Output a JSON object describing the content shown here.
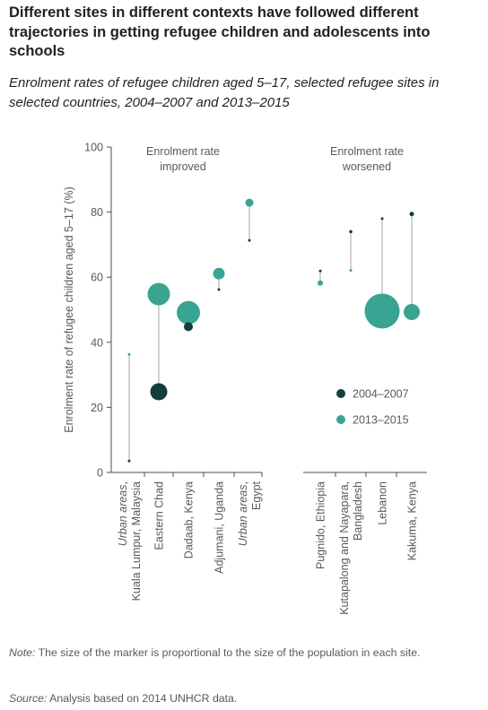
{
  "title": "Different sites in different contexts have followed different trajectories in getting refugee children and adolescents into schools",
  "subtitle": "Enrolment rates of refugee children aged 5–17, selected refugee sites in selected countries, 2004–2007 and 2013–2015",
  "note": {
    "label": "Note:",
    "text": " The size of the marker is proportional to the size of the population in each site."
  },
  "source": {
    "label": "Source:",
    "text": " Analysis based on 2014 UNHCR data."
  },
  "colors": {
    "period1": "#123e3b",
    "period2": "#3aa493",
    "connector": "#b3b3b3",
    "axis": "#4d4d4d",
    "text": "#58595b"
  },
  "chart_data": {
    "type": "scatter",
    "title": "",
    "xlabel": "",
    "ylabel": "Enrolment rate of refugee children aged 5–17 (%)",
    "ylim": [
      0,
      100
    ],
    "yticks": [
      0,
      20,
      40,
      60,
      80,
      100
    ],
    "grid": false,
    "legend_position": "bottom-right",
    "series": [
      {
        "name": "2004–2007",
        "color": "#123e3b"
      },
      {
        "name": "2013–2015",
        "color": "#3aa493"
      }
    ],
    "groups": [
      {
        "label": "Enrolment rate improved",
        "label_lines": [
          "Enrolment rate",
          "improved"
        ]
      },
      {
        "label": "Enrolment rate worsened",
        "label_lines": [
          "Enrolment rate",
          "worsened"
        ]
      }
    ],
    "sites": [
      {
        "group": 0,
        "label_lines": [
          {
            "text": "Urban areas,",
            "italic_part": "Urban areas"
          },
          {
            "text": "Kuala Lumpur, Malaysia"
          }
        ],
        "v2004_2007": 3.5,
        "v2013_2015": 36.3,
        "size2004_2007": 1.5,
        "size2013_2015": 1.5
      },
      {
        "group": 0,
        "label_lines": [
          {
            "text": "Eastern Chad"
          }
        ],
        "v2004_2007": 24.8,
        "v2013_2015": 54.8,
        "size2004_2007": 9.5,
        "size2013_2015": 12.5
      },
      {
        "group": 0,
        "label_lines": [
          {
            "text": "Dadaab, Kenya"
          }
        ],
        "v2004_2007": 44.8,
        "v2013_2015": 49.1,
        "size2004_2007": 5,
        "size2013_2015": 13
      },
      {
        "group": 0,
        "label_lines": [
          {
            "text": "Adjumani, Uganda"
          }
        ],
        "v2004_2007": 56.2,
        "v2013_2015": 61.1,
        "size2004_2007": 1.5,
        "size2013_2015": 6.5
      },
      {
        "group": 0,
        "label_lines": [
          {
            "text": "Urban areas,",
            "italic_part": "Urban areas"
          },
          {
            "text": "Egypt"
          }
        ],
        "v2004_2007": 71.3,
        "v2013_2015": 82.9,
        "size2004_2007": 1.5,
        "size2013_2015": 4.5
      },
      {
        "group": 1,
        "label_lines": [
          {
            "text": "Pugnido, Ethiopia"
          }
        ],
        "v2004_2007": 61.9,
        "v2013_2015": 58.2,
        "size2004_2007": 1.5,
        "size2013_2015": 3
      },
      {
        "group": 1,
        "label_lines": [
          {
            "text": "Kutapalong and Nayapara,"
          },
          {
            "text": "Bangladesh"
          }
        ],
        "v2004_2007": 74.0,
        "v2013_2015": 62.1,
        "size2004_2007": 1.8,
        "size2013_2015": 1.5
      },
      {
        "group": 1,
        "label_lines": [
          {
            "text": "Lebanon"
          }
        ],
        "v2004_2007": 78.0,
        "v2013_2015": 49.6,
        "size2004_2007": 1.5,
        "size2013_2015": 19.5
      },
      {
        "group": 1,
        "label_lines": [
          {
            "text": "Kakuma, Kenya"
          }
        ],
        "v2004_2007": 79.4,
        "v2013_2015": 49.3,
        "size2004_2007": 2.5,
        "size2013_2015": 9
      }
    ]
  }
}
